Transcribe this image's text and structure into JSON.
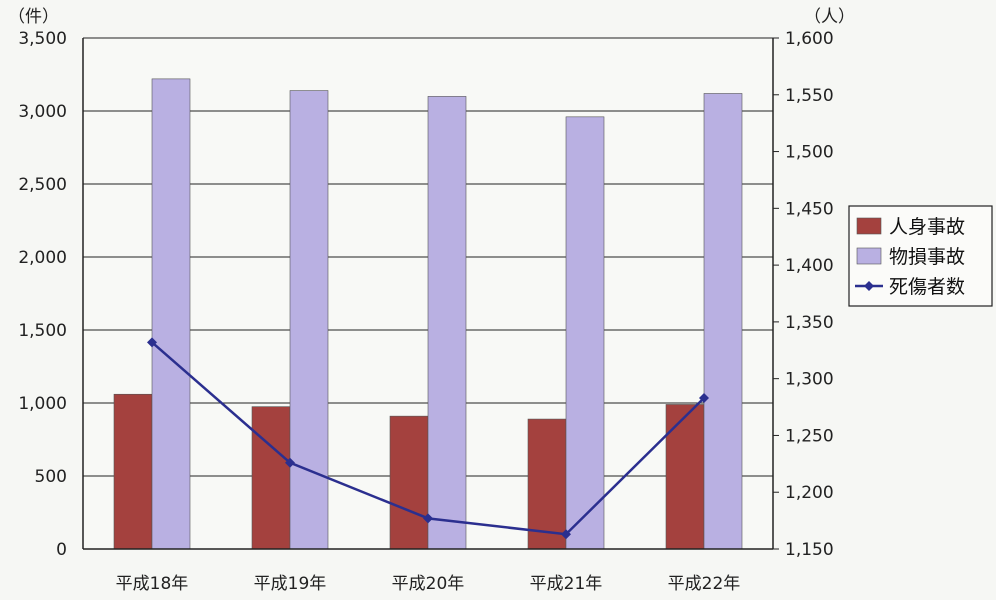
{
  "chart_data": {
    "type": "bar",
    "categories": [
      "平成18年",
      "平成19年",
      "平成20年",
      "平成21年",
      "平成22年"
    ],
    "y_left": {
      "unit": "（件）",
      "ylim": [
        0,
        3500
      ],
      "ticks": [
        0,
        500,
        1000,
        1500,
        2000,
        2500,
        3000,
        3500
      ],
      "tick_labels": [
        "0",
        "500",
        "1,000",
        "1,500",
        "2,000",
        "2,500",
        "3,000",
        "3,500"
      ]
    },
    "y_right": {
      "unit": "（人）",
      "ylim": [
        1150,
        1600
      ],
      "ticks": [
        1150,
        1200,
        1250,
        1300,
        1350,
        1400,
        1450,
        1500,
        1550,
        1600
      ],
      "tick_labels": [
        "1,150",
        "1,200",
        "1,250",
        "1,300",
        "1,350",
        "1,400",
        "1,450",
        "1,500",
        "1,550",
        "1,600"
      ]
    },
    "series": [
      {
        "name": "人身事故",
        "kind": "bar",
        "axis": "left",
        "color": "#a4413e",
        "values": [
          1060,
          975,
          910,
          890,
          990
        ]
      },
      {
        "name": "物損事故",
        "kind": "bar",
        "axis": "left",
        "color": "#b9b0e2",
        "values": [
          3220,
          3140,
          3100,
          2960,
          3120
        ]
      },
      {
        "name": "死傷者数",
        "kind": "line",
        "axis": "right",
        "color": "#2b2f8f",
        "values": [
          1332,
          1226,
          1177,
          1163,
          1283
        ]
      }
    ],
    "grid": true,
    "legend_position": "right"
  }
}
